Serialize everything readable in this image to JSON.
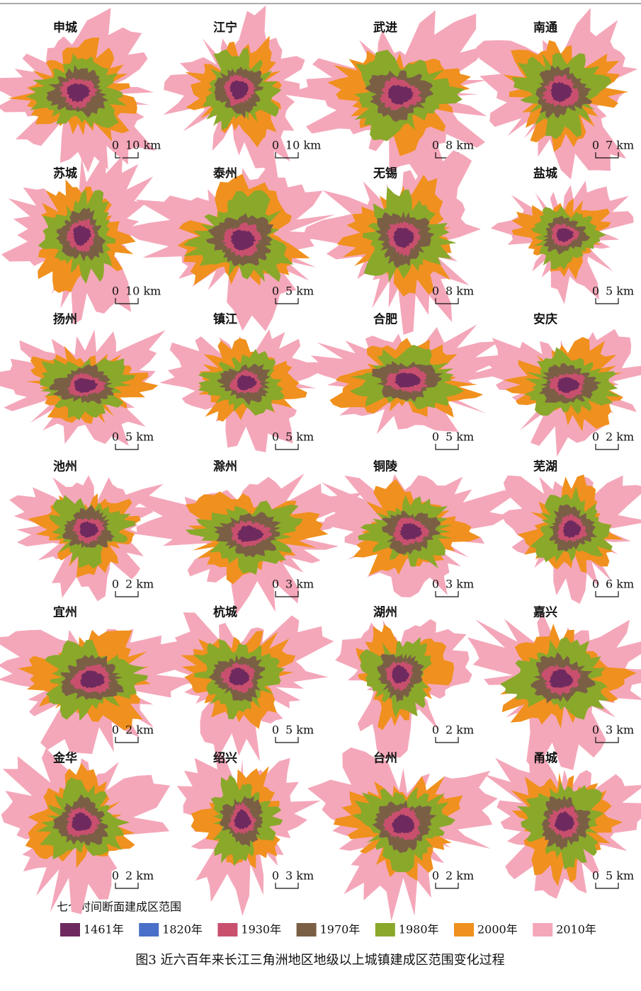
{
  "cities": [
    {
      "name": "申城",
      "scale": "10 km"
    },
    {
      "name": "江宁",
      "scale": "10 km"
    },
    {
      "name": "武进",
      "scale": "8 km"
    },
    {
      "name": "南通",
      "scale": "7 km"
    },
    {
      "name": "苏城",
      "scale": "10 km"
    },
    {
      "name": "泰州",
      "scale": "5 km"
    },
    {
      "name": "无锡",
      "scale": "8 km"
    },
    {
      "name": "盐城",
      "scale": "5 km"
    },
    {
      "name": "扬州",
      "scale": "5 km"
    },
    {
      "name": "镇江",
      "scale": "5 km"
    },
    {
      "name": "合肥",
      "scale": "5 km"
    },
    {
      "name": "安庆",
      "scale": "2 km"
    },
    {
      "name": "池州",
      "scale": "2 km"
    },
    {
      "name": "滁州",
      "scale": "3 km"
    },
    {
      "name": "铜陵",
      "scale": "3 km"
    },
    {
      "name": "芜湖",
      "scale": "6 km"
    },
    {
      "name": "宜州",
      "scale": "2 km"
    },
    {
      "name": "杭城",
      "scale": "5 km"
    },
    {
      "name": "湖州",
      "scale": "2 km"
    },
    {
      "name": "嘉兴",
      "scale": "3 km"
    },
    {
      "name": "金华",
      "scale": "2 km"
    },
    {
      "name": "绍兴",
      "scale": "3 km"
    },
    {
      "name": "台州",
      "scale": "2 km"
    },
    {
      "name": "甬城",
      "scale": "5 km"
    }
  ],
  "scale_zero": "0",
  "legend": {
    "title": "七个时间断面建成区范围",
    "items": [
      {
        "label": "1461年",
        "color": "#6e2a5e"
      },
      {
        "label": "1820年",
        "color": "#4a6fc8"
      },
      {
        "label": "1930年",
        "color": "#c8506e"
      },
      {
        "label": "1970年",
        "color": "#7a5f45"
      },
      {
        "label": "1980年",
        "color": "#8aa82a"
      },
      {
        "label": "2000年",
        "color": "#f0901e"
      },
      {
        "label": "2010年",
        "color": "#f4a7b9"
      }
    ]
  },
  "caption": "图3  近六百年来长江三角洲地区地级以上城镇建成区范围变化过程"
}
